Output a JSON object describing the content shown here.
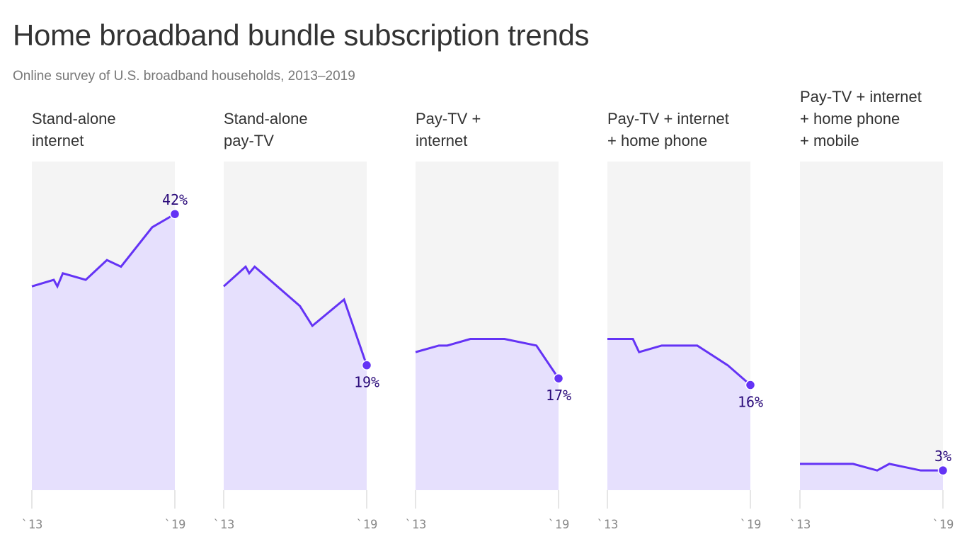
{
  "title": "Home broadband bundle subscription trends",
  "subtitle": "Online survey of U.S. broadband households, 2013–2019",
  "colors": {
    "line": "#6433f5",
    "fill": "#e6e0fd",
    "panel_bg": "#f4f4f4",
    "label": "#2a0a7a"
  },
  "chart_data": [
    {
      "type": "area",
      "title": "Stand-alone internet",
      "title_lines": [
        "Stand-alone",
        "internet"
      ],
      "xlim": [
        2013,
        2019
      ],
      "ylim": [
        0,
        50
      ],
      "x_tick_labels": [
        "`13",
        "`19"
      ],
      "end_label": "42%",
      "label_pos": "above",
      "x": [
        2013,
        2013.92,
        2014.07,
        2014.3,
        2015.26,
        2016.15,
        2016.74,
        2018.05,
        2019
      ],
      "y": [
        31,
        32,
        31,
        33,
        32,
        35,
        34,
        40,
        42
      ]
    },
    {
      "type": "area",
      "title": "Stand-alone pay-TV",
      "title_lines": [
        "Stand-alone",
        "pay-TV"
      ],
      "xlim": [
        2013,
        2019
      ],
      "ylim": [
        0,
        50
      ],
      "x_tick_labels": [
        "`13",
        "`19"
      ],
      "end_label": "19%",
      "label_pos": "below",
      "x": [
        2013,
        2013.92,
        2014.07,
        2014.3,
        2016.2,
        2016.72,
        2018.05,
        2019
      ],
      "y": [
        31,
        34,
        33,
        34,
        28,
        25,
        29,
        19
      ]
    },
    {
      "type": "area",
      "title": "Pay-TV + internet",
      "title_lines": [
        "Pay-TV +",
        "internet"
      ],
      "xlim": [
        2013,
        2019
      ],
      "ylim": [
        0,
        50
      ],
      "x_tick_labels": [
        "`13",
        "`19"
      ],
      "end_label": "17%",
      "label_pos": "below",
      "x": [
        2013,
        2013.98,
        2014.33,
        2015.3,
        2016.73,
        2018.07,
        2019
      ],
      "y": [
        21,
        22,
        22,
        23,
        23,
        22,
        17
      ]
    },
    {
      "type": "area",
      "title": "Pay-TV + internet + home phone",
      "title_lines": [
        "Pay-TV + internet",
        "+ home phone"
      ],
      "xlim": [
        2013,
        2019
      ],
      "ylim": [
        0,
        50
      ],
      "x_tick_labels": [
        "`13",
        "`19"
      ],
      "end_label": "16%",
      "label_pos": "below",
      "x": [
        2013,
        2014.07,
        2014.33,
        2015.28,
        2016.77,
        2018.05,
        2019
      ],
      "y": [
        23,
        23,
        21,
        22,
        22,
        19,
        16
      ]
    },
    {
      "type": "area",
      "title": "Pay-TV + internet + home phone + mobile",
      "title_lines": [
        "Pay-TV + internet",
        "+ home phone",
        "+ mobile"
      ],
      "xlim": [
        2013,
        2019
      ],
      "ylim": [
        0,
        50
      ],
      "x_tick_labels": [
        "`13",
        "`19"
      ],
      "end_label": "3%",
      "label_pos": "above",
      "x": [
        2013,
        2015.23,
        2016.24,
        2016.75,
        2018.07,
        2019
      ],
      "y": [
        4,
        4,
        3,
        4,
        3,
        3
      ]
    }
  ]
}
